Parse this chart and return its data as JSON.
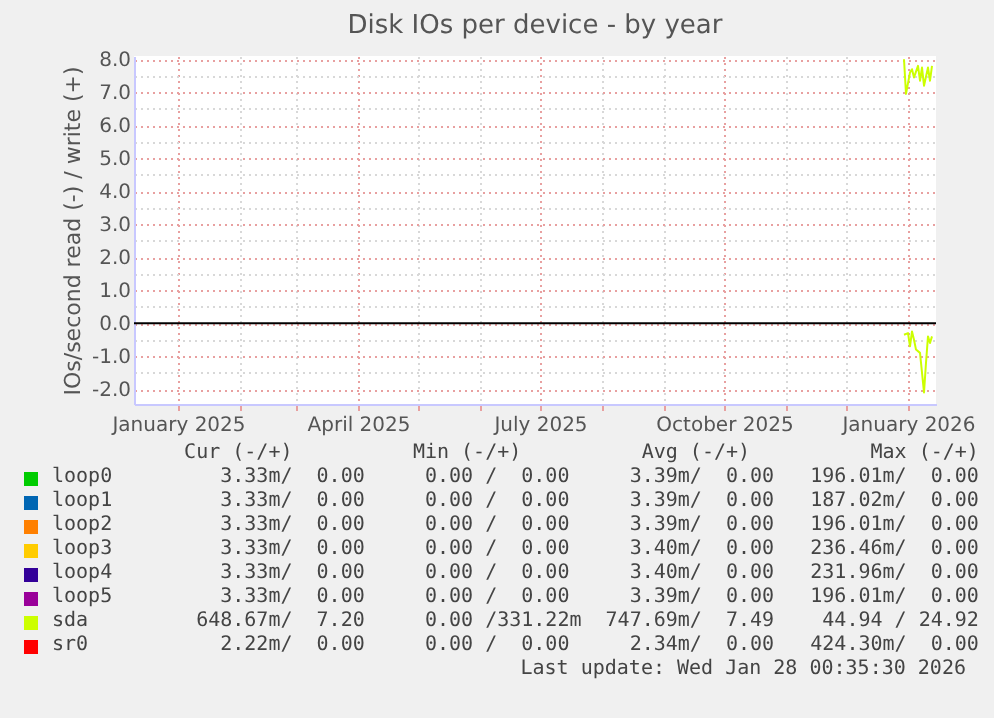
{
  "chart_data": {
    "type": "line",
    "title": "Disk IOs per device - by year",
    "ylabel": "IOs/second read (-) / write (+)",
    "xlim": [
      "2024-12-10",
      "2026-01-15"
    ],
    "xticks": [
      {
        "value": "2025-01-01",
        "label": "January 2025"
      },
      {
        "value": "2025-02-01",
        "label": null
      },
      {
        "value": "2025-03-01",
        "label": null
      },
      {
        "value": "2025-04-01",
        "label": "April 2025"
      },
      {
        "value": "2025-05-01",
        "label": null
      },
      {
        "value": "2025-06-01",
        "label": null
      },
      {
        "value": "2025-07-01",
        "label": "July 2025"
      },
      {
        "value": "2025-08-01",
        "label": null
      },
      {
        "value": "2025-09-01",
        "label": null
      },
      {
        "value": "2025-10-01",
        "label": "October 2025"
      },
      {
        "value": "2025-11-01",
        "label": null
      },
      {
        "value": "2025-12-01",
        "label": null
      },
      {
        "value": "2026-01-01",
        "label": "January 2026"
      }
    ],
    "ylim": [
      -2.45,
      8.1
    ],
    "yticks": [
      {
        "value": -2,
        "label": "-2.0"
      },
      {
        "value": -1.5,
        "label": null
      },
      {
        "value": -1,
        "label": "-1.0"
      },
      {
        "value": -0.5,
        "label": null
      },
      {
        "value": 0,
        "label": "0.0"
      },
      {
        "value": 0.5,
        "label": null
      },
      {
        "value": 1,
        "label": "1.0"
      },
      {
        "value": 1.5,
        "label": null
      },
      {
        "value": 2,
        "label": "2.0"
      },
      {
        "value": 2.5,
        "label": null
      },
      {
        "value": 3,
        "label": "3.0"
      },
      {
        "value": 3.5,
        "label": null
      },
      {
        "value": 4,
        "label": "4.0"
      },
      {
        "value": 4.5,
        "label": null
      },
      {
        "value": 5,
        "label": "5.0"
      },
      {
        "value": 5.5,
        "label": null
      },
      {
        "value": 6,
        "label": "6.0"
      },
      {
        "value": 6.5,
        "label": null
      },
      {
        "value": 7,
        "label": "7.0"
      },
      {
        "value": 7.5,
        "label": null
      },
      {
        "value": 8,
        "label": "8.0"
      }
    ],
    "grid": true,
    "legend": "bottom",
    "ref_lines": [
      {
        "axis": "y",
        "value": 0,
        "color": "#000000"
      }
    ],
    "series": [
      {
        "name": "loop0",
        "color": "#00cc00"
      },
      {
        "name": "loop1",
        "color": "#0066b3"
      },
      {
        "name": "loop2",
        "color": "#ff8000"
      },
      {
        "name": "loop3",
        "color": "#ffcc00"
      },
      {
        "name": "loop4",
        "color": "#330099"
      },
      {
        "name": "loop5",
        "color": "#990099"
      },
      {
        "name": "sda",
        "color": "#ccff00",
        "x": [
          "2025-12-30",
          "2025-12-31",
          "2026-01-02",
          "2026-01-03",
          "2026-01-04",
          "2026-01-06",
          "2026-01-07",
          "2026-01-08",
          "2026-01-09",
          "2026-01-11",
          "2026-01-12",
          "2026-01-13"
        ],
        "values": [
          8.0,
          6.95,
          7.6,
          7.7,
          7.45,
          7.8,
          7.35,
          7.75,
          7.2,
          7.75,
          7.35,
          7.8
        ]
      },
      {
        "name": "sr0",
        "color": "#ff0000"
      },
      {
        "color": "#ccff00",
        "x": [
          "2025-12-30",
          "2026-01-01",
          "2026-01-02",
          "2026-01-03",
          "2026-01-04",
          "2026-01-05",
          "2026-01-07",
          "2026-01-08",
          "2026-01-09",
          "2026-01-10",
          "2026-01-11",
          "2026-01-12",
          "2026-01-13"
        ],
        "values": [
          -0.35,
          -0.3,
          -0.7,
          -0.25,
          -0.5,
          -0.8,
          -0.9,
          -1.5,
          -2.1,
          -1.2,
          -0.4,
          -0.6,
          -0.4
        ]
      }
    ],
    "annotations": [
      "   Cur (-/+)          Min (-/+)          Avg (-/+)          Max (-/+)",
      "      3.33m/  0.00     0.00 /  0.00     3.39m/  0.00   196.01m/  0.00",
      "      3.33m/  0.00     0.00 /  0.00     3.39m/  0.00   187.02m/  0.00",
      "      3.33m/  0.00     0.00 /  0.00     3.39m/  0.00   196.01m/  0.00",
      "      3.33m/  0.00     0.00 /  0.00     3.40m/  0.00   236.46m/  0.00",
      "      3.33m/  0.00     0.00 /  0.00     3.40m/  0.00   231.96m/  0.00",
      "      3.33m/  0.00     0.00 /  0.00     3.39m/  0.00   196.01m/  0.00",
      "    648.67m/  7.20     0.00 /331.22m  747.69m/  7.49    44.94 / 24.92",
      "      2.22m/  0.00     0.00 /  0.00     2.34m/  0.00   424.30m/  0.00",
      "Last update: Wed Jan 28 00:35:30 2026"
    ]
  }
}
